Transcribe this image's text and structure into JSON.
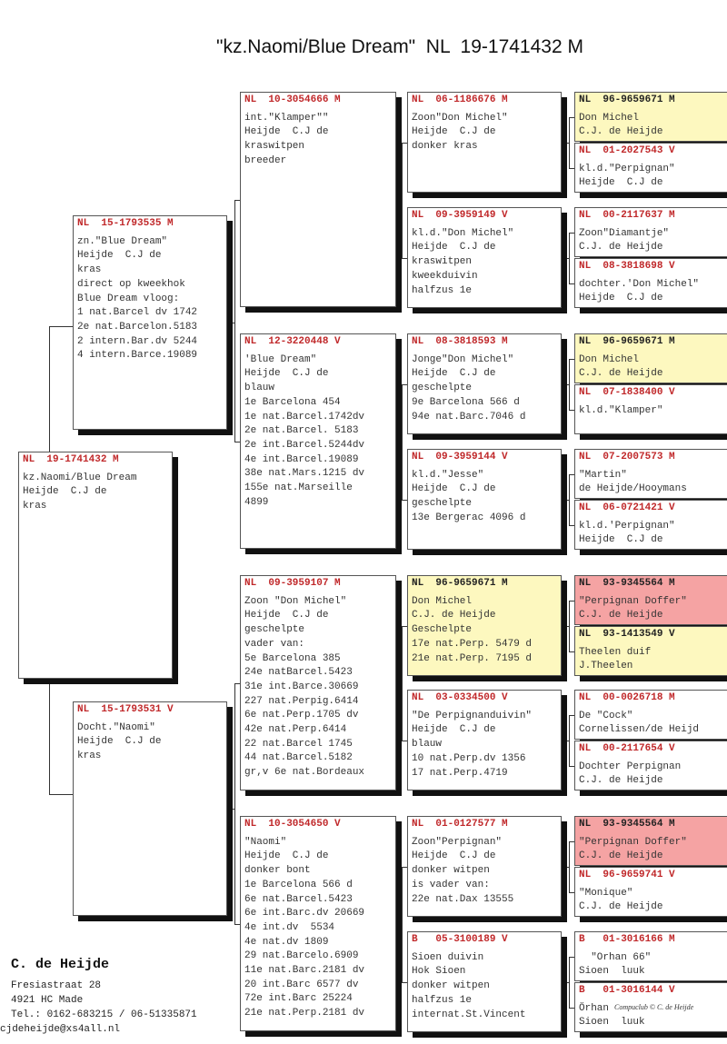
{
  "title": "\"kz.Naomi/Blue Dream\"  NL  19-1741432 M",
  "colors": {
    "header_red": "#c0282a",
    "yellow": "#fdf8bf",
    "pink": "#f5a3a3"
  },
  "birds": [
    {
      "hdr": "NL  19-1741432 M",
      "lines": [
        "kz.Naomi/Blue Dream",
        "Heijde  C.J de",
        "kras"
      ]
    },
    {
      "hdr": "NL  15-1793535 M",
      "lines": [
        "zn.\"Blue Dream\"",
        "Heijde  C.J de",
        "kras",
        "direct op kweekhok",
        "Blue Dream vloog:",
        "1 nat.Barcel dv 1742",
        "2e nat.Barcelon.5183",
        "2 intern.Bar.dv 5244",
        "4 intern.Barce.19089"
      ]
    },
    {
      "hdr": "NL  15-1793531 V",
      "lines": [
        "Docht.\"Naomi\"",
        "Heijde  C.J de",
        "kras"
      ]
    },
    {
      "hdr": "NL  10-3054666 M",
      "lines": [
        "int.\"Klamper\"\"",
        "Heijde  C.J de",
        "kraswitpen",
        "breeder"
      ]
    },
    {
      "hdr": "NL  12-3220448 V",
      "lines": [
        "'Blue Dream\"",
        "Heijde  C.J de",
        "blauw",
        "1e Barcelona 454",
        "1e nat.Barcel.1742dv",
        "2e nat.Barcel. 5183",
        "2e int.Barcel.5244dv",
        "4e int.Barcel.19089",
        "38e nat.Mars.1215 dv",
        "155e nat.Marseille",
        "4899"
      ]
    },
    {
      "hdr": "NL  09-3959107 M",
      "lines": [
        "Zoon \"Don Michel\"",
        "Heijde  C.J de",
        "geschelpte",
        "vader van:",
        "5e Barcelona 385",
        "24e natBarcel.5423",
        "31e int.Barce.30669",
        "227 nat.Perpig.6414",
        "6e nat.Perp.1705 dv",
        "42e nat.Perp.6414",
        "22 nat.Barcel 1745",
        "44 nat.Barcel.5182",
        "gr,v 6e nat.Bordeaux"
      ]
    },
    {
      "hdr": "NL  10-3054650 V",
      "lines": [
        "\"Naomi\"",
        "Heijde  C.J de",
        "donker bont",
        "1e Barcelona 566 d",
        "6e nat.Barcel.5423",
        "6e int.Barc.dv 20669",
        "4e int.dv  5534",
        "4e nat.dv 1809",
        "29 nat.Barcelo.6909",
        "11e nat.Barc.2181 dv",
        "20 int.Barc 6577 dv",
        "72e int.Barc 25224",
        "21e nat.Perp.2181 dv"
      ]
    },
    {
      "hdr": "NL  06-1186676 M",
      "lines": [
        "Zoon\"Don Michel\"",
        "Heijde  C.J de",
        "donker kras"
      ]
    },
    {
      "hdr": "NL  09-3959149 V",
      "lines": [
        "kl.d.\"Don Michel\"",
        "Heijde  C.J de",
        "kraswitpen",
        "kweekduivin",
        "halfzus 1e"
      ]
    },
    {
      "hdr": "NL  08-3818593 M",
      "lines": [
        "Jonge\"Don Michel\"",
        "Heijde  C.J de",
        "geschelpte",
        "9e Barcelona 566 d",
        "94e nat.Barc.7046 d"
      ]
    },
    {
      "hdr": "NL  09-3959144 V",
      "lines": [
        "kl.d.\"Jesse\"",
        "Heijde  C.J de",
        "geschelpte",
        "13e Bergerac 4096 d"
      ]
    },
    {
      "hdr": "NL  96-9659671 M",
      "bg": "yellow",
      "lines": [
        "Don Michel",
        "C.J. de Heijde",
        "Geschelpte",
        "17e nat.Perp. 5479 d",
        "21e nat.Perp. 7195 d"
      ]
    },
    {
      "hdr": "NL  03-0334500 V",
      "lines": [
        "\"De Perpignanduivin\"",
        "Heijde  C.J de",
        "blauw",
        "10 nat.Perp.dv 1356",
        "17 nat.Perp.4719"
      ]
    },
    {
      "hdr": "NL  01-0127577 M",
      "lines": [
        "Zoon\"Perpignan\"",
        "Heijde  C.J de",
        "donker witpen",
        "is vader van:",
        "22e nat.Dax 13555"
      ]
    },
    {
      "hdr": "B   05-3100189 V",
      "lines": [
        "Sioen duivin",
        "Hok Sioen",
        "donker witpen",
        "halfzus 1e",
        "internat.St.Vincent"
      ]
    },
    {
      "hdr": "NL  96-9659671 M",
      "bg": "yellow",
      "lines": [
        "Don Michel",
        "C.J. de Heijde"
      ]
    },
    {
      "hdr": "NL  01-2027543 V",
      "lines": [
        "kl.d.\"Perpignan\"",
        "Heijde  C.J de"
      ]
    },
    {
      "hdr": "NL  00-2117637 M",
      "lines": [
        "Zoon\"Diamantje\"",
        "C.J. de Heijde"
      ]
    },
    {
      "hdr": "NL  08-3818698 V",
      "lines": [
        "dochter.'Don Michel\"",
        "Heijde  C.J de"
      ]
    },
    {
      "hdr": "NL  96-9659671 M",
      "bg": "yellow",
      "lines": [
        "Don Michel",
        "C.J. de Heijde"
      ]
    },
    {
      "hdr": "NL  07-1838400 V",
      "lines": [
        "kl.d.\"Klamper\""
      ]
    },
    {
      "hdr": "NL  07-2007573 M",
      "lines": [
        "\"Martin\"",
        "de Heijde/Hooymans"
      ]
    },
    {
      "hdr": "NL  06-0721421 V",
      "lines": [
        "kl.d.'Perpignan\"",
        "Heijde  C.J de"
      ]
    },
    {
      "hdr": "NL  93-9345564 M",
      "bg": "pink",
      "lines": [
        "\"Perpignan Doffer\"",
        "C.J. de Heijde"
      ]
    },
    {
      "hdr": "NL  93-1413549 V",
      "bg": "yellow",
      "lines": [
        "Theelen duif",
        "J.Theelen"
      ]
    },
    {
      "hdr": "NL  00-0026718 M",
      "lines": [
        "De \"Cock\"",
        "Cornelissen/de Heijd"
      ]
    },
    {
      "hdr": "NL  00-2117654 V",
      "lines": [
        "Dochter Perpignan",
        "C.J. de Heijde"
      ]
    },
    {
      "hdr": "NL  93-9345564 M",
      "bg": "pink",
      "lines": [
        "\"Perpignan Doffer\"",
        "C.J. de Heijde"
      ]
    },
    {
      "hdr": "NL  96-9659741 V",
      "lines": [
        "\"Monique\"",
        "C.J. de Heijde"
      ]
    },
    {
      "hdr": "B   01-3016166 M",
      "lines": [
        "  \"Orhan 66\"",
        "Sioen  luuk"
      ]
    },
    {
      "hdr": "B   01-3016144 V",
      "lines": [
        "Örhan",
        "Sioen  luuk"
      ]
    }
  ],
  "footer": {
    "name": "C. de Heijde",
    "street": "Fresiastraat 28",
    "city": "4921 HC  Made",
    "phone": "Tel.: 0162-683215 / 06-51335871",
    "email": "cjdeheijde@xs4all.nl",
    "watermark": "Compuclub © C. de Heijde"
  }
}
